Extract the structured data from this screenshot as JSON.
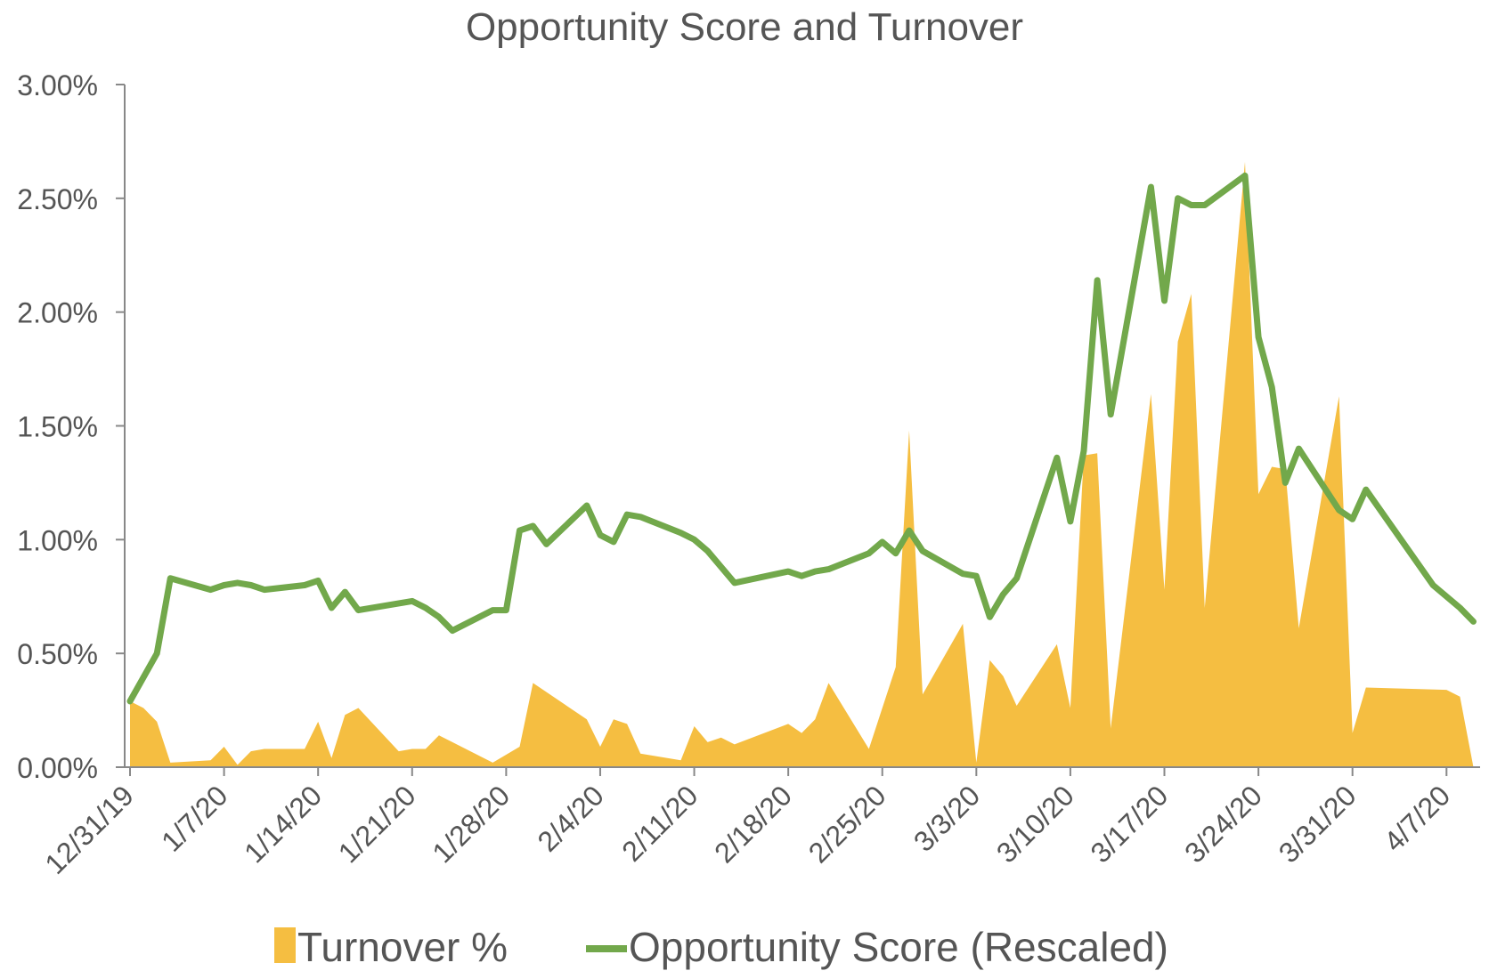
{
  "chart_data": {
    "type": "area+line",
    "title": "Opportunity Score and Turnover",
    "xlabel": "",
    "ylabel": "",
    "x_start": "12/31/19",
    "ylim": [
      0,
      0.03
    ],
    "yticks": [
      "0.00%",
      "0.50%",
      "1.00%",
      "1.50%",
      "2.00%",
      "2.50%",
      "3.00%"
    ],
    "xticks": [
      "12/31/19",
      "1/7/20",
      "1/14/20",
      "1/21/20",
      "1/28/20",
      "2/4/20",
      "2/11/20",
      "2/18/20",
      "2/25/20",
      "3/3/20",
      "3/10/20",
      "3/17/20",
      "3/24/20",
      "3/31/20",
      "4/7/20"
    ],
    "legend": {
      "position": "bottom"
    },
    "grid": false,
    "colors": {
      "turnover": "#F5BE41",
      "opportunity": "#72A84B",
      "axis": "#888888",
      "text": "#555555"
    },
    "series": [
      {
        "name": "Turnover %",
        "type": "area",
        "points": [
          [
            "12/31/19",
            0.0029
          ],
          [
            "1/1/20",
            0.0026
          ],
          [
            "1/2/20",
            0.002
          ],
          [
            "1/3/20",
            0.0002
          ],
          [
            "1/6/20",
            0.0003
          ],
          [
            "1/7/20",
            0.0009
          ],
          [
            "1/8/20",
            0.0001
          ],
          [
            "1/9/20",
            0.0007
          ],
          [
            "1/10/20",
            0.0008
          ],
          [
            "1/13/20",
            0.0008
          ],
          [
            "1/14/20",
            0.002
          ],
          [
            "1/15/20",
            0.0004
          ],
          [
            "1/16/20",
            0.0023
          ],
          [
            "1/17/20",
            0.0026
          ],
          [
            "1/20/20",
            0.0007
          ],
          [
            "1/21/20",
            0.0008
          ],
          [
            "1/22/20",
            0.0008
          ],
          [
            "1/23/20",
            0.0014
          ],
          [
            "1/27/20",
            0.0002
          ],
          [
            "1/29/20",
            0.0009
          ],
          [
            "1/30/20",
            0.0037
          ],
          [
            "2/3/20",
            0.0021
          ],
          [
            "2/4/20",
            0.0009
          ],
          [
            "2/5/20",
            0.0021
          ],
          [
            "2/6/20",
            0.0019
          ],
          [
            "2/7/20",
            0.0006
          ],
          [
            "2/10/20",
            0.0003
          ],
          [
            "2/11/20",
            0.0018
          ],
          [
            "2/12/20",
            0.0011
          ],
          [
            "2/13/20",
            0.0013
          ],
          [
            "2/14/20",
            0.001
          ],
          [
            "2/18/20",
            0.0019
          ],
          [
            "2/19/20",
            0.0015
          ],
          [
            "2/20/20",
            0.0021
          ],
          [
            "2/21/20",
            0.0037
          ],
          [
            "2/24/20",
            0.0008
          ],
          [
            "2/26/20",
            0.0044
          ],
          [
            "2/27/20",
            0.0148
          ],
          [
            "2/28/20",
            0.0032
          ],
          [
            "3/2/20",
            0.0063
          ],
          [
            "3/3/20",
            0.0002
          ],
          [
            "3/4/20",
            0.0047
          ],
          [
            "3/5/20",
            0.004
          ],
          [
            "3/6/20",
            0.0027
          ],
          [
            "3/9/20",
            0.0054
          ],
          [
            "3/10/20",
            0.0026
          ],
          [
            "3/11/20",
            0.0137
          ],
          [
            "3/12/20",
            0.0138
          ],
          [
            "3/13/20",
            0.0017
          ],
          [
            "3/16/20",
            0.0164
          ],
          [
            "3/17/20",
            0.0078
          ],
          [
            "3/18/20",
            0.0187
          ],
          [
            "3/19/20",
            0.0208
          ],
          [
            "3/20/20",
            0.007
          ],
          [
            "3/23/20",
            0.0266
          ],
          [
            "3/24/20",
            0.012
          ],
          [
            "3/25/20",
            0.0132
          ],
          [
            "3/26/20",
            0.0131
          ],
          [
            "3/27/20",
            0.0061
          ],
          [
            "3/30/20",
            0.0163
          ],
          [
            "3/31/20",
            0.0015
          ],
          [
            "4/1/20",
            0.0035
          ],
          [
            "4/7/20",
            0.0034
          ],
          [
            "4/8/20",
            0.0031
          ],
          [
            "4/9/20",
            0.0
          ]
        ]
      },
      {
        "name": "Opportunity Score (Rescaled)",
        "type": "line",
        "points": [
          [
            "12/31/19",
            0.0029
          ],
          [
            "1/2/20",
            0.005
          ],
          [
            "1/3/20",
            0.0083
          ],
          [
            "1/6/20",
            0.0078
          ],
          [
            "1/7/20",
            0.008
          ],
          [
            "1/8/20",
            0.0081
          ],
          [
            "1/9/20",
            0.008
          ],
          [
            "1/10/20",
            0.0078
          ],
          [
            "1/13/20",
            0.008
          ],
          [
            "1/14/20",
            0.0082
          ],
          [
            "1/15/20",
            0.007
          ],
          [
            "1/16/20",
            0.0077
          ],
          [
            "1/17/20",
            0.0069
          ],
          [
            "1/21/20",
            0.0073
          ],
          [
            "1/22/20",
            0.007
          ],
          [
            "1/23/20",
            0.0066
          ],
          [
            "1/24/20",
            0.006
          ],
          [
            "1/27/20",
            0.0069
          ],
          [
            "1/28/20",
            0.0069
          ],
          [
            "1/29/20",
            0.0104
          ],
          [
            "1/30/20",
            0.0106
          ],
          [
            "1/31/20",
            0.0098
          ],
          [
            "2/3/20",
            0.0115
          ],
          [
            "2/4/20",
            0.0102
          ],
          [
            "2/5/20",
            0.0099
          ],
          [
            "2/6/20",
            0.0111
          ],
          [
            "2/7/20",
            0.011
          ],
          [
            "2/10/20",
            0.0103
          ],
          [
            "2/11/20",
            0.01
          ],
          [
            "2/12/20",
            0.0095
          ],
          [
            "2/13/20",
            0.0088
          ],
          [
            "2/14/20",
            0.0081
          ],
          [
            "2/18/20",
            0.0086
          ],
          [
            "2/19/20",
            0.0084
          ],
          [
            "2/20/20",
            0.0086
          ],
          [
            "2/21/20",
            0.0087
          ],
          [
            "2/24/20",
            0.0094
          ],
          [
            "2/25/20",
            0.0099
          ],
          [
            "2/26/20",
            0.0094
          ],
          [
            "2/27/20",
            0.0104
          ],
          [
            "2/28/20",
            0.0095
          ],
          [
            "3/2/20",
            0.0085
          ],
          [
            "3/3/20",
            0.0084
          ],
          [
            "3/4/20",
            0.0066
          ],
          [
            "3/5/20",
            0.0076
          ],
          [
            "3/6/20",
            0.0083
          ],
          [
            "3/9/20",
            0.0136
          ],
          [
            "3/10/20",
            0.0108
          ],
          [
            "3/11/20",
            0.0139
          ],
          [
            "3/12/20",
            0.0214
          ],
          [
            "3/13/20",
            0.0155
          ],
          [
            "3/16/20",
            0.0255
          ],
          [
            "3/17/20",
            0.0205
          ],
          [
            "3/18/20",
            0.025
          ],
          [
            "3/19/20",
            0.0247
          ],
          [
            "3/20/20",
            0.0247
          ],
          [
            "3/23/20",
            0.026
          ],
          [
            "3/24/20",
            0.0189
          ],
          [
            "3/25/20",
            0.0167
          ],
          [
            "3/26/20",
            0.0125
          ],
          [
            "3/27/20",
            0.014
          ],
          [
            "3/30/20",
            0.0113
          ],
          [
            "3/31/20",
            0.0109
          ],
          [
            "4/1/20",
            0.0122
          ],
          [
            "4/6/20",
            0.008
          ],
          [
            "4/8/20",
            0.007
          ],
          [
            "4/9/20",
            0.0064
          ]
        ]
      }
    ]
  }
}
